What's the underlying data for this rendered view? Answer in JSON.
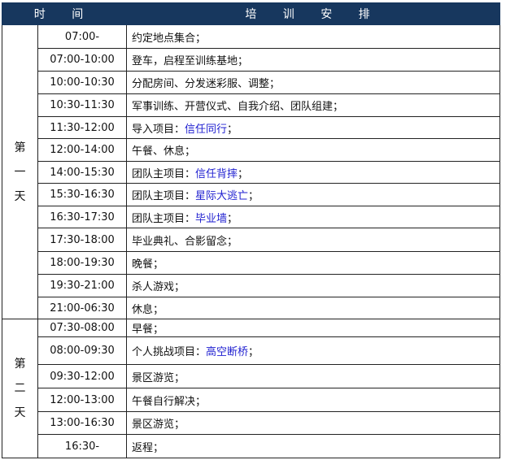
{
  "header": {
    "time": "时 间",
    "schedule": "培 训 安 排"
  },
  "colors": {
    "header_bg": "#17375e",
    "highlight": "#1f1fd0"
  },
  "days": [
    {
      "label": [
        "第",
        "一",
        "天"
      ],
      "rows": [
        {
          "time": "07:00-",
          "text": "约定地点集合；",
          "hl": ""
        },
        {
          "time": "07:00-10:00",
          "text": "登车，启程至训练基地；",
          "hl": ""
        },
        {
          "time": "10:00-10:30",
          "text": "分配房间、分发迷彩服、调整；",
          "hl": ""
        },
        {
          "time": "10:30-11:30",
          "text": "军事训练、开营仪式、自我介绍、团队组建；",
          "hl": ""
        },
        {
          "time": "11:30-12:00",
          "text": "导入项目：",
          "hl": "信任同行",
          "end": "；"
        },
        {
          "time": "12:00-14:00",
          "text": "午餐、休息；",
          "hl": ""
        },
        {
          "time": "14:00-15:30",
          "text": "团队主项目：",
          "hl": "信任背摔",
          "end": "；"
        },
        {
          "time": "15:30-16:30",
          "text": "团队主项目：",
          "hl": "星际大逃亡",
          "end": "；"
        },
        {
          "time": "16:30-17:30",
          "text": "团队主项目：",
          "hl": "毕业墙",
          "end": "；"
        },
        {
          "time": "17:30-18:00",
          "text": "毕业典礼、合影留念；",
          "hl": ""
        },
        {
          "time": "18:00-19:30",
          "text": "晚餐；",
          "hl": ""
        },
        {
          "time": "19:30-21:00",
          "text": "杀人游戏；",
          "hl": ""
        },
        {
          "time": "21:00-06:30",
          "text": "休息；",
          "hl": ""
        }
      ]
    },
    {
      "label": [
        "第",
        "二",
        "天"
      ],
      "rows": [
        {
          "time": "07:30-08:00",
          "text": "早餐；",
          "hl": ""
        },
        {
          "time": "08:00-09:30",
          "text": "个人挑战项目：",
          "hl": "高空断桥",
          "end": "；"
        },
        {
          "time": "09:30-12:00",
          "text": "景区游览；",
          "hl": ""
        },
        {
          "time": "12:00-13:00",
          "text": "午餐自行解决；",
          "hl": ""
        },
        {
          "time": "13:00-16:30",
          "text": "景区游览；",
          "hl": ""
        },
        {
          "time": "16:30-",
          "text": "返程；",
          "hl": ""
        }
      ]
    }
  ]
}
